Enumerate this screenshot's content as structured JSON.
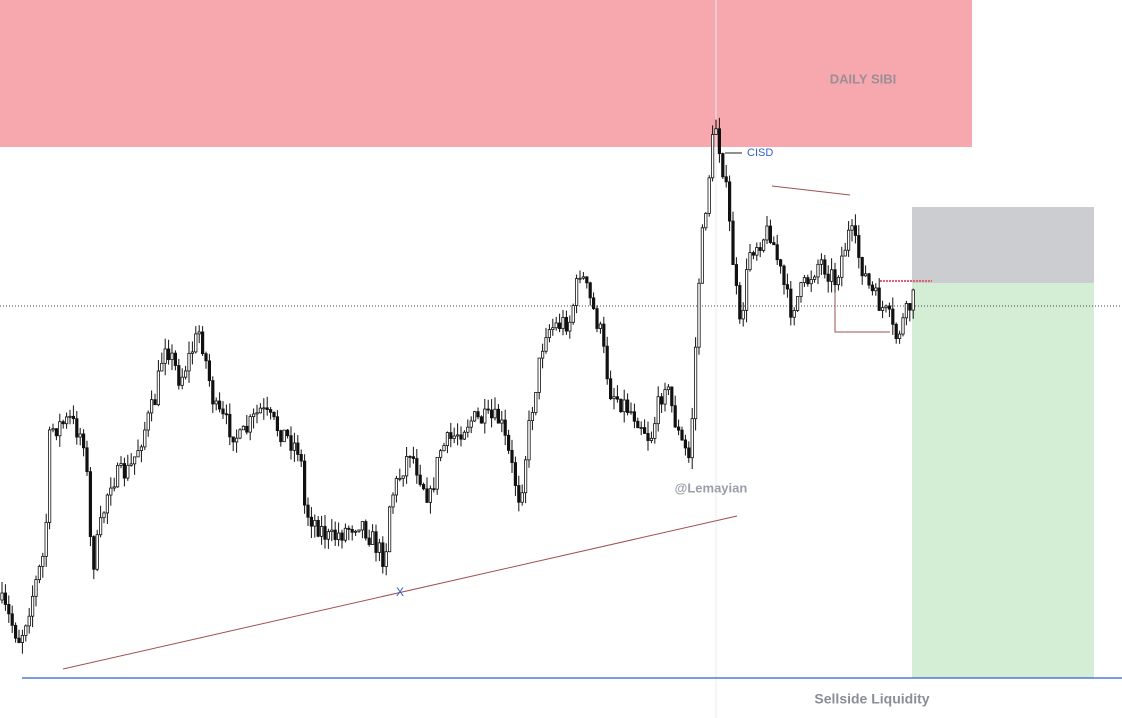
{
  "annotations": {
    "zone_label": "DAILY SIBI",
    "cisd": "CISD",
    "watermark": "@Lemayian",
    "marker": "X",
    "liquidity": "Sellside Liquidity"
  }
}
